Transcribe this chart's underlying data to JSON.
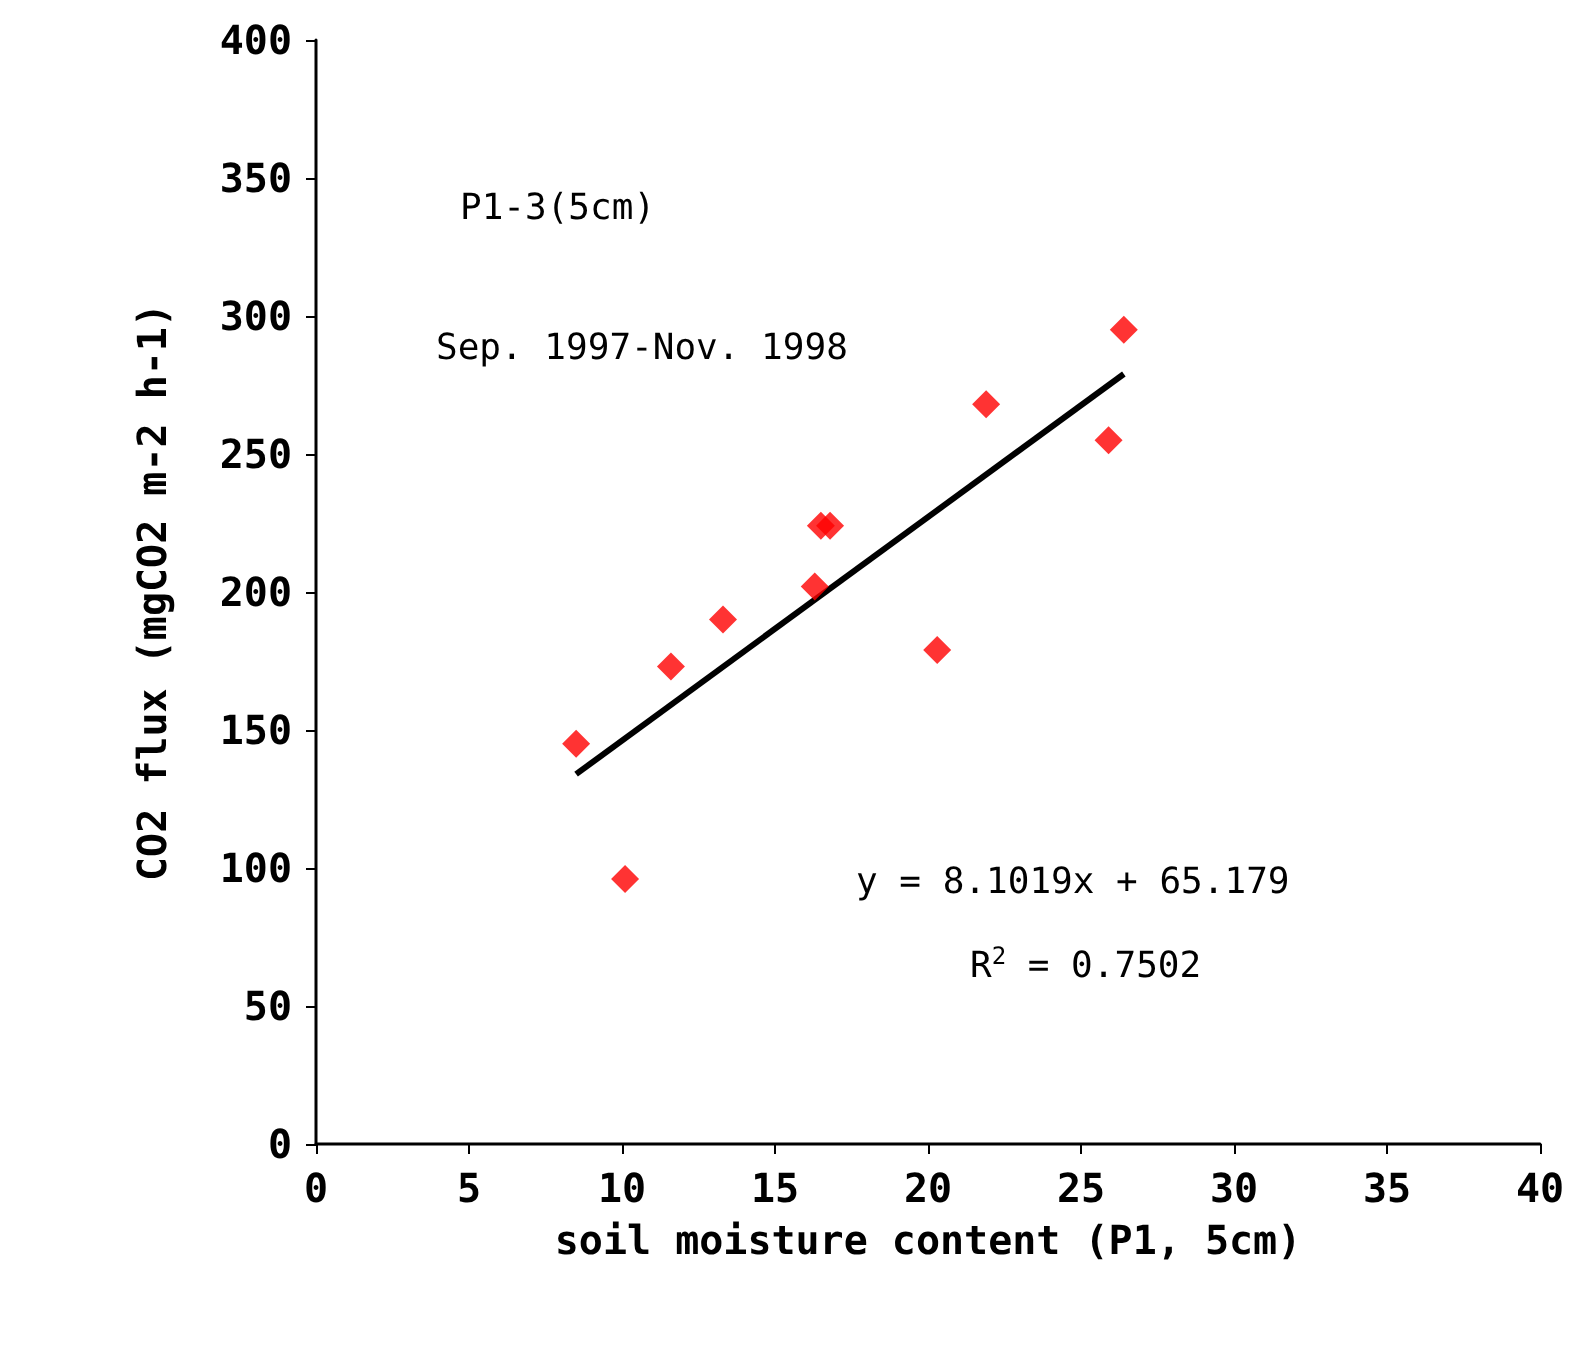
{
  "chart_data": {
    "type": "scatter",
    "xlabel": "soil moisture content (P1, 5cm)",
    "ylabel": "CO2 flux (mgCO2 m-2 h-1)",
    "annotations": [
      "P1-3(5cm)",
      "Sep. 1997-Nov. 1998",
      "y = 8.1019x + 65.179",
      "R$^{2}$ = 0.7502"
    ],
    "series": [
      {
        "color": "#ff0000",
        "marker": "diamond",
        "x": [
          8.5,
          10.1,
          11.6,
          13.3,
          16.3,
          16.5,
          16.8,
          20.3,
          21.9,
          25.9,
          26.4
        ],
        "values": [
          145,
          96,
          173,
          190,
          202,
          224,
          224,
          179,
          268,
          255,
          295
        ]
      },
      {
        "type": "line",
        "color": "#000000",
        "marker": "none",
        "line_style": "solid",
        "x": [
          8.5,
          26.4
        ],
        "values": [
          134,
          279
        ]
      }
    ],
    "xlim": [
      0,
      40
    ],
    "xticks": [
      0,
      5,
      10,
      15,
      20,
      25,
      30,
      35,
      40
    ],
    "ylim": [
      0,
      400
    ],
    "yticks": [
      0,
      50,
      100,
      150,
      200,
      250,
      300,
      350,
      400
    ],
    "grid": false
  }
}
